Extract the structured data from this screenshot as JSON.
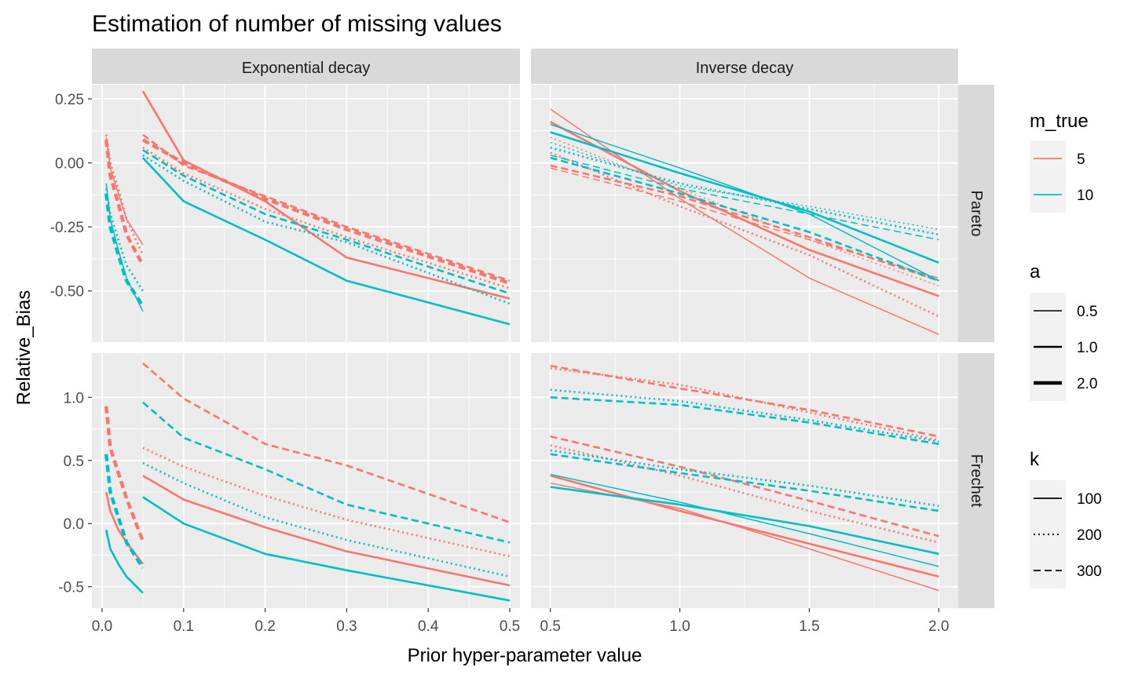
{
  "chart_data": {
    "type": "line",
    "title": "Estimation of number of missing values",
    "xlabel": "Prior hyper-parameter value",
    "ylabel": "Relative_Bias",
    "facet_cols": [
      "Exponential decay",
      "Inverse decay"
    ],
    "facet_rows": [
      "Pareto",
      "Frechet"
    ],
    "x_ticks": {
      "Exponential decay": [
        "0.0",
        "0.1",
        "0.2",
        "0.3",
        "0.4",
        "0.5"
      ],
      "Inverse decay": [
        "0.5",
        "1.0",
        "1.5",
        "2.0"
      ]
    },
    "y_ticks": {
      "Pareto": [
        "0.25",
        "0.00",
        "-0.25",
        "-0.50"
      ],
      "Frechet": [
        "1.0",
        "0.5",
        "0.0",
        "-0.5"
      ]
    },
    "xlim": {
      "Exponential decay": [
        -0.0125,
        0.5125
      ],
      "Inverse decay": [
        0.425,
        2.075
      ]
    },
    "ylim": {
      "Pareto": [
        -0.7,
        0.305
      ],
      "Frechet": [
        -0.67,
        1.35
      ]
    },
    "legend": {
      "m_true": {
        "title": "m_true",
        "entries": [
          {
            "label": "5",
            "color": "#F8766D"
          },
          {
            "label": "10",
            "color": "#00BFC4"
          }
        ]
      },
      "a": {
        "title": "a",
        "entries": [
          {
            "label": "0.5",
            "width": 1.5
          },
          {
            "label": "1.0",
            "width": 2.6
          },
          {
            "label": "2.0",
            "width": 4.4
          }
        ]
      },
      "k": {
        "title": "k",
        "entries": [
          {
            "label": "100",
            "dash": "solid"
          },
          {
            "label": "200",
            "dash": "dotted"
          },
          {
            "label": "300",
            "dash": "dashed"
          }
        ]
      }
    },
    "series": [
      {
        "panel": "Exponential decay|Pareto",
        "m_true": "5",
        "a": "1.0",
        "k": "100",
        "x": [
          0.05,
          0.1,
          0.2,
          0.3,
          0.5
        ],
        "y": [
          0.28,
          0.01,
          -0.15,
          -0.37,
          -0.53
        ]
      },
      {
        "panel": "Exponential decay|Pareto",
        "m_true": "5",
        "a": "1.0",
        "k": "200",
        "x": [
          0.05,
          0.1,
          0.2,
          0.3,
          0.5
        ],
        "y": [
          0.06,
          -0.04,
          -0.18,
          -0.29,
          -0.49
        ]
      },
      {
        "panel": "Exponential decay|Pareto",
        "m_true": "5",
        "a": "1.0",
        "k": "300",
        "x": [
          0.05,
          0.1,
          0.2,
          0.3,
          0.5
        ],
        "y": [
          0.11,
          -0.01,
          -0.13,
          -0.25,
          -0.46
        ]
      },
      {
        "panel": "Exponential decay|Pareto",
        "m_true": "5",
        "a": "2.0",
        "k": "300",
        "x": [
          0.05,
          0.1,
          0.2,
          0.3,
          0.5
        ],
        "y": [
          0.09,
          0.0,
          -0.14,
          -0.26,
          -0.47
        ]
      },
      {
        "panel": "Exponential decay|Pareto",
        "m_true": "10",
        "a": "1.0",
        "k": "100",
        "x": [
          0.05,
          0.1,
          0.2,
          0.3,
          0.5
        ],
        "y": [
          0.02,
          -0.15,
          -0.3,
          -0.46,
          -0.63
        ]
      },
      {
        "panel": "Exponential decay|Pareto",
        "m_true": "10",
        "a": "1.0",
        "k": "200",
        "x": [
          0.05,
          0.1,
          0.2,
          0.3,
          0.5
        ],
        "y": [
          0.03,
          -0.07,
          -0.23,
          -0.31,
          -0.55
        ]
      },
      {
        "panel": "Exponential decay|Pareto",
        "m_true": "10",
        "a": "1.0",
        "k": "300",
        "x": [
          0.05,
          0.1,
          0.2,
          0.3,
          0.5
        ],
        "y": [
          0.05,
          -0.05,
          -0.2,
          -0.3,
          -0.51
        ]
      },
      {
        "panel": "Exponential decay|Pareto",
        "m_true": "5",
        "a": "0.5",
        "k": "100",
        "x": [
          0.005,
          0.01,
          0.02,
          0.03,
          0.05
        ],
        "y": [
          0.1,
          -0.02,
          -0.12,
          -0.22,
          -0.32
        ]
      },
      {
        "panel": "Exponential decay|Pareto",
        "m_true": "5",
        "a": "1.0",
        "k": "200",
        "x": [
          0.005,
          0.01,
          0.02,
          0.03,
          0.05
        ],
        "y": [
          0.11,
          0.0,
          -0.1,
          -0.22,
          -0.36
        ]
      },
      {
        "panel": "Exponential decay|Pareto",
        "m_true": "5",
        "a": "2.0",
        "k": "300",
        "x": [
          0.005,
          0.01,
          0.02,
          0.03,
          0.05
        ],
        "y": [
          0.09,
          -0.05,
          -0.16,
          -0.28,
          -0.4
        ]
      },
      {
        "panel": "Exponential decay|Pareto",
        "m_true": "10",
        "a": "0.5",
        "k": "100",
        "x": [
          0.005,
          0.01,
          0.02,
          0.03,
          0.05
        ],
        "y": [
          -0.08,
          -0.22,
          -0.34,
          -0.45,
          -0.58
        ]
      },
      {
        "panel": "Exponential decay|Pareto",
        "m_true": "10",
        "a": "1.0",
        "k": "200",
        "x": [
          0.005,
          0.01,
          0.02,
          0.03,
          0.05
        ],
        "y": [
          -0.1,
          -0.2,
          -0.3,
          -0.4,
          -0.5
        ]
      },
      {
        "panel": "Exponential decay|Pareto",
        "m_true": "10",
        "a": "2.0",
        "k": "300",
        "x": [
          0.005,
          0.01,
          0.02,
          0.03,
          0.05
        ],
        "y": [
          -0.12,
          -0.25,
          -0.36,
          -0.46,
          -0.56
        ]
      },
      {
        "panel": "Inverse decay|Pareto",
        "m_true": "5",
        "a": "0.5",
        "k": "100",
        "x": [
          0.5,
          1.0,
          1.5,
          2.0
        ],
        "y": [
          0.21,
          -0.14,
          -0.45,
          -0.67
        ]
      },
      {
        "panel": "Inverse decay|Pareto",
        "m_true": "5",
        "a": "1.0",
        "k": "100",
        "x": [
          0.5,
          1.0,
          1.5,
          2.0
        ],
        "y": [
          0.16,
          -0.11,
          -0.34,
          -0.52
        ]
      },
      {
        "panel": "Inverse decay|Pareto",
        "m_true": "5",
        "a": "0.5",
        "k": "200",
        "x": [
          0.5,
          1.0,
          1.5,
          2.0
        ],
        "y": [
          0.1,
          -0.1,
          -0.3,
          -0.48
        ]
      },
      {
        "panel": "Inverse decay|Pareto",
        "m_true": "5",
        "a": "1.0",
        "k": "200",
        "x": [
          0.5,
          1.0,
          1.5,
          2.0
        ],
        "y": [
          0.04,
          -0.17,
          -0.36,
          -0.6
        ]
      },
      {
        "panel": "Inverse decay|Pareto",
        "m_true": "5",
        "a": "1.0",
        "k": "300",
        "x": [
          0.5,
          1.0,
          1.5,
          2.0
        ],
        "y": [
          -0.01,
          -0.13,
          -0.29,
          -0.46
        ]
      },
      {
        "panel": "Inverse decay|Pareto",
        "m_true": "5",
        "a": "0.5",
        "k": "300",
        "x": [
          0.5,
          1.0,
          1.5,
          2.0
        ],
        "y": [
          -0.02,
          -0.15,
          -0.3,
          -0.45
        ]
      },
      {
        "panel": "Inverse decay|Pareto",
        "m_true": "10",
        "a": "0.5",
        "k": "100",
        "x": [
          0.5,
          1.0,
          1.5,
          2.0
        ],
        "y": [
          0.15,
          -0.02,
          -0.2,
          -0.46
        ]
      },
      {
        "panel": "Inverse decay|Pareto",
        "m_true": "10",
        "a": "1.0",
        "k": "100",
        "x": [
          0.5,
          1.0,
          1.5,
          2.0
        ],
        "y": [
          0.12,
          -0.04,
          -0.19,
          -0.39
        ]
      },
      {
        "panel": "Inverse decay|Pareto",
        "m_true": "10",
        "a": "0.5",
        "k": "200",
        "x": [
          0.5,
          1.0,
          1.5,
          2.0
        ],
        "y": [
          0.08,
          -0.09,
          -0.17,
          -0.26
        ]
      },
      {
        "panel": "Inverse decay|Pareto",
        "m_true": "10",
        "a": "1.0",
        "k": "200",
        "x": [
          0.5,
          1.0,
          1.5,
          2.0
        ],
        "y": [
          0.06,
          -0.08,
          -0.18,
          -0.28
        ]
      },
      {
        "panel": "Inverse decay|Pareto",
        "m_true": "10",
        "a": "0.5",
        "k": "300",
        "x": [
          0.5,
          1.0,
          1.5,
          2.0
        ],
        "y": [
          0.03,
          -0.1,
          -0.2,
          -0.3
        ]
      },
      {
        "panel": "Inverse decay|Pareto",
        "m_true": "10",
        "a": "1.0",
        "k": "300",
        "x": [
          0.5,
          1.0,
          1.5,
          2.0
        ],
        "y": [
          0.02,
          -0.12,
          -0.27,
          -0.46
        ]
      },
      {
        "panel": "Exponential decay|Frechet",
        "m_true": "5",
        "a": "1.0",
        "k": "100",
        "x": [
          0.05,
          0.1,
          0.2,
          0.3,
          0.5
        ],
        "y": [
          0.38,
          0.19,
          -0.03,
          -0.22,
          -0.49
        ]
      },
      {
        "panel": "Exponential decay|Frechet",
        "m_true": "5",
        "a": "1.0",
        "k": "200",
        "x": [
          0.05,
          0.1,
          0.2,
          0.3,
          0.5
        ],
        "y": [
          0.6,
          0.45,
          0.22,
          0.03,
          -0.26
        ]
      },
      {
        "panel": "Exponential decay|Frechet",
        "m_true": "5",
        "a": "1.0",
        "k": "300",
        "x": [
          0.05,
          0.1,
          0.2,
          0.3,
          0.5
        ],
        "y": [
          1.27,
          0.99,
          0.63,
          0.46,
          0.01
        ]
      },
      {
        "panel": "Exponential decay|Frechet",
        "m_true": "10",
        "a": "1.0",
        "k": "100",
        "x": [
          0.05,
          0.1,
          0.2,
          0.3,
          0.5
        ],
        "y": [
          0.21,
          0.0,
          -0.24,
          -0.37,
          -0.61
        ]
      },
      {
        "panel": "Exponential decay|Frechet",
        "m_true": "10",
        "a": "1.0",
        "k": "200",
        "x": [
          0.05,
          0.1,
          0.2,
          0.3,
          0.5
        ],
        "y": [
          0.48,
          0.32,
          0.05,
          -0.13,
          -0.42
        ]
      },
      {
        "panel": "Exponential decay|Frechet",
        "m_true": "10",
        "a": "1.0",
        "k": "300",
        "x": [
          0.05,
          0.1,
          0.2,
          0.3,
          0.5
        ],
        "y": [
          0.96,
          0.68,
          0.43,
          0.15,
          -0.15
        ]
      },
      {
        "panel": "Exponential decay|Frechet",
        "m_true": "5",
        "a": "2.0",
        "k": "300",
        "x": [
          0.005,
          0.01,
          0.02,
          0.03,
          0.05
        ],
        "y": [
          0.93,
          0.6,
          0.4,
          0.2,
          -0.14
        ]
      },
      {
        "panel": "Exponential decay|Frechet",
        "m_true": "5",
        "a": "1.0",
        "k": "100",
        "x": [
          0.005,
          0.01,
          0.02,
          0.03,
          0.05
        ],
        "y": [
          0.25,
          0.1,
          -0.05,
          -0.15,
          -0.32
        ]
      },
      {
        "panel": "Exponential decay|Frechet",
        "m_true": "10",
        "a": "2.0",
        "k": "300",
        "x": [
          0.005,
          0.01,
          0.02,
          0.03,
          0.05
        ],
        "y": [
          0.55,
          0.25,
          0.05,
          -0.15,
          -0.35
        ]
      },
      {
        "panel": "Exponential decay|Frechet",
        "m_true": "10",
        "a": "1.0",
        "k": "100",
        "x": [
          0.005,
          0.01,
          0.02,
          0.03,
          0.05
        ],
        "y": [
          -0.05,
          -0.2,
          -0.32,
          -0.42,
          -0.55
        ]
      },
      {
        "panel": "Inverse decay|Frechet",
        "m_true": "5",
        "a": "1.0",
        "k": "300",
        "x": [
          0.5,
          1.0,
          1.5,
          2.0
        ],
        "y": [
          1.25,
          1.07,
          0.9,
          0.69
        ]
      },
      {
        "panel": "Inverse decay|Frechet",
        "m_true": "5",
        "a": "1.0",
        "k": "200",
        "x": [
          0.5,
          1.0,
          1.5,
          2.0
        ],
        "y": [
          1.23,
          1.1,
          0.88,
          0.66
        ]
      },
      {
        "panel": "Inverse decay|Frechet",
        "m_true": "10",
        "a": "1.0",
        "k": "200",
        "x": [
          0.5,
          1.0,
          1.5,
          2.0
        ],
        "y": [
          1.06,
          0.97,
          0.82,
          0.65
        ]
      },
      {
        "panel": "Inverse decay|Frechet",
        "m_true": "10",
        "a": "1.0",
        "k": "300",
        "x": [
          0.5,
          1.0,
          1.5,
          2.0
        ],
        "y": [
          1.0,
          0.94,
          0.8,
          0.63
        ]
      },
      {
        "panel": "Inverse decay|Frechet",
        "m_true": "5",
        "a": "1.0",
        "k": "300",
        "x": [
          0.5,
          1.0,
          1.5,
          2.0
        ],
        "y": [
          0.69,
          0.45,
          0.18,
          -0.1
        ]
      },
      {
        "panel": "Inverse decay|Frechet",
        "m_true": "5",
        "a": "1.0",
        "k": "200",
        "x": [
          0.5,
          1.0,
          1.5,
          2.0
        ],
        "y": [
          0.62,
          0.38,
          0.1,
          -0.15
        ]
      },
      {
        "panel": "Inverse decay|Frechet",
        "m_true": "10",
        "a": "1.0",
        "k": "200",
        "x": [
          0.5,
          1.0,
          1.5,
          2.0
        ],
        "y": [
          0.58,
          0.43,
          0.3,
          0.14
        ]
      },
      {
        "panel": "Inverse decay|Frechet",
        "m_true": "10",
        "a": "1.0",
        "k": "300",
        "x": [
          0.5,
          1.0,
          1.5,
          2.0
        ],
        "y": [
          0.55,
          0.4,
          0.26,
          0.1
        ]
      },
      {
        "panel": "Inverse decay|Frechet",
        "m_true": "5",
        "a": "1.0",
        "k": "100",
        "x": [
          0.5,
          1.0,
          1.5,
          2.0
        ],
        "y": [
          0.38,
          0.1,
          -0.16,
          -0.42
        ]
      },
      {
        "panel": "Inverse decay|Frechet",
        "m_true": "5",
        "a": "0.5",
        "k": "100",
        "x": [
          0.5,
          1.0,
          1.5,
          2.0
        ],
        "y": [
          0.32,
          0.12,
          -0.2,
          -0.53
        ]
      },
      {
        "panel": "Inverse decay|Frechet",
        "m_true": "10",
        "a": "1.0",
        "k": "100",
        "x": [
          0.5,
          1.0,
          1.5,
          2.0
        ],
        "y": [
          0.29,
          0.15,
          -0.02,
          -0.24
        ]
      },
      {
        "panel": "Inverse decay|Frechet",
        "m_true": "10",
        "a": "0.5",
        "k": "100",
        "x": [
          0.5,
          1.0,
          1.5,
          2.0
        ],
        "y": [
          0.39,
          0.17,
          -0.08,
          -0.34
        ]
      }
    ]
  }
}
